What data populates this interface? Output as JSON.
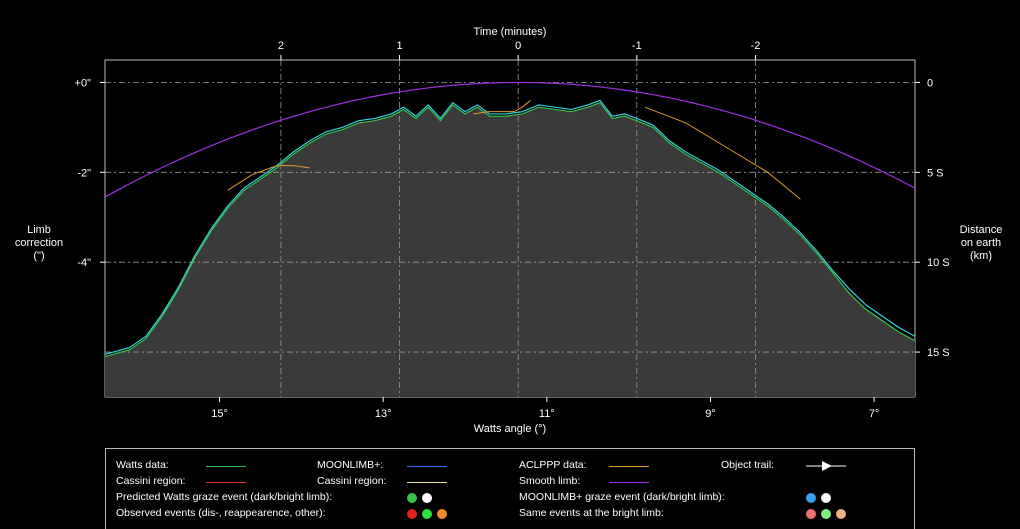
{
  "chart_data": {
    "type": "line",
    "xlabel": "Watts angle (°)",
    "x2label": "Time (minutes)",
    "ylabel": "Limb\ncorrection\n(\")",
    "y2label": "Distance\non earth\n(km)",
    "xlim": [
      16.4,
      6.5
    ],
    "ylim": [
      -7,
      0.5
    ],
    "x_ticks": [
      {
        "v": 15,
        "label": "15°"
      },
      {
        "v": 13,
        "label": "13°"
      },
      {
        "v": 11,
        "label": "11°"
      },
      {
        "v": 9,
        "label": "9°"
      },
      {
        "v": 7,
        "label": "7°"
      }
    ],
    "x2_ticks": [
      {
        "v": 2,
        "label": "2"
      },
      {
        "v": 1,
        "label": "1"
      },
      {
        "v": 0,
        "label": "0"
      },
      {
        "v": -1,
        "label": "-1"
      },
      {
        "v": -2,
        "label": "-2"
      }
    ],
    "y_ticks": [
      {
        "v": 0,
        "label": "+0\""
      },
      {
        "v": -2,
        "label": "-2\""
      },
      {
        "v": -4,
        "label": "-4\""
      }
    ],
    "y2_ticks": [
      {
        "v": 0,
        "label": "0"
      },
      {
        "v": -2,
        "label": "5 S"
      },
      {
        "v": -4,
        "label": "10 S"
      },
      {
        "v": -6,
        "label": "15 S"
      }
    ],
    "grid": true,
    "series": [
      {
        "name": "Watts data:",
        "color": "#34c24a",
        "x": [
          16.4,
          16.1,
          15.9,
          15.7,
          15.5,
          15.3,
          15.1,
          14.9,
          14.7,
          14.5,
          14.3,
          14.1,
          13.9,
          13.7,
          13.5,
          13.3,
          13.1,
          12.9,
          12.75,
          12.6,
          12.45,
          12.3,
          12.15,
          12.0,
          11.85,
          11.7,
          11.5,
          11.3,
          11.1,
          10.9,
          10.7,
          10.5,
          10.35,
          10.2,
          10.05,
          9.9,
          9.7,
          9.5,
          9.3,
          9.1,
          8.9,
          8.7,
          8.5,
          8.3,
          8.1,
          7.9,
          7.7,
          7.5,
          7.3,
          7.1,
          6.9,
          6.7,
          6.5
        ],
        "y": [
          -6.1,
          -5.95,
          -5.7,
          -5.2,
          -4.6,
          -3.9,
          -3.3,
          -2.8,
          -2.4,
          -2.15,
          -1.9,
          -1.6,
          -1.35,
          -1.15,
          -1.05,
          -0.9,
          -0.85,
          -0.75,
          -0.6,
          -0.8,
          -0.55,
          -0.85,
          -0.5,
          -0.7,
          -0.55,
          -0.75,
          -0.75,
          -0.7,
          -0.55,
          -0.6,
          -0.65,
          -0.55,
          -0.45,
          -0.8,
          -0.75,
          -0.85,
          -1.0,
          -1.35,
          -1.6,
          -1.8,
          -2.0,
          -2.25,
          -2.5,
          -2.75,
          -3.05,
          -3.4,
          -3.8,
          -4.25,
          -4.7,
          -5.05,
          -5.3,
          -5.55,
          -5.75
        ]
      },
      {
        "name": "MOONLIMB+:",
        "color": "#3b6df0",
        "x": [
          16.4,
          16.1,
          15.9,
          15.7,
          15.5,
          15.3,
          15.1,
          14.9,
          14.7,
          14.5,
          14.3,
          14.1,
          13.9,
          13.7,
          13.5,
          13.3,
          13.1,
          12.9,
          12.75,
          12.6,
          12.45,
          12.3,
          12.15,
          12.0,
          11.85,
          11.7,
          11.5,
          11.3,
          11.1,
          10.9,
          10.7,
          10.5,
          10.35,
          10.2,
          10.05,
          9.9,
          9.7,
          9.5,
          9.3,
          9.1,
          8.9,
          8.7,
          8.5,
          8.3,
          8.1,
          7.9,
          7.7,
          7.5,
          7.3,
          7.1,
          6.9,
          6.7,
          6.5
        ],
        "y": [
          -6.05,
          -5.9,
          -5.65,
          -5.15,
          -4.55,
          -3.85,
          -3.25,
          -2.75,
          -2.35,
          -2.1,
          -1.85,
          -1.55,
          -1.3,
          -1.1,
          -1.0,
          -0.85,
          -0.8,
          -0.7,
          -0.55,
          -0.75,
          -0.5,
          -0.8,
          -0.45,
          -0.65,
          -0.5,
          -0.7,
          -0.7,
          -0.65,
          -0.5,
          -0.55,
          -0.6,
          -0.5,
          -0.4,
          -0.75,
          -0.7,
          -0.8,
          -0.95,
          -1.3,
          -1.55,
          -1.75,
          -1.95,
          -2.2,
          -2.45,
          -2.7,
          -3.0,
          -3.35,
          -3.75,
          -4.2,
          -4.6,
          -4.95,
          -5.2,
          -5.45,
          -5.65
        ]
      },
      {
        "name": "Cassini region:",
        "color": "#e03030",
        "x": [],
        "y": []
      },
      {
        "name": "Cassini region:",
        "color": "#f0e0a0",
        "x": [],
        "y": []
      },
      {
        "name": "ACLPPP data:",
        "color": "#e09a2a",
        "x": [
          14.9,
          14.6,
          14.3,
          14.1,
          13.9
        ],
        "y": [
          -2.4,
          -2.05,
          -1.85,
          -1.85,
          -1.9
        ],
        "x_b": [
          11.9,
          11.7,
          11.4,
          11.3,
          11.2
        ],
        "y_b": [
          -0.7,
          -0.65,
          -0.65,
          -0.55,
          -0.4
        ],
        "x_c": [
          9.8,
          9.3,
          8.8,
          8.3,
          7.9
        ],
        "y_c": [
          -0.55,
          -0.9,
          -1.45,
          -2.0,
          -2.6
        ]
      },
      {
        "name": "Smooth limb:",
        "color": "#a030e0"
      }
    ],
    "smooth_limb": {
      "center_x": 11.35,
      "peak_y": 0,
      "curvature": 0.1
    }
  },
  "legend": {
    "watts": "Watts data:",
    "moonlimb": "MOONLIMB+:",
    "aclppp": "ACLPPP data:",
    "trail": "Object trail:",
    "cassini1": "Cassini region:",
    "cassini2": "Cassini region:",
    "smooth": "Smooth limb:",
    "pred_watts": "Predicted Watts graze event (dark/bright limb):",
    "moonlimb_graze": "MOONLIMB+ graze event (dark/bright limb):",
    "observed": "Observed events (dis-, reappearence, other):",
    "same_bright": "Same events at the bright limb:",
    "colors": {
      "watts": "#34c24a",
      "moonlimb": "#3b6df0",
      "cassini1": "#e03030",
      "cassini2": "#f0e0a0",
      "aclppp": "#e09a2a",
      "smooth": "#a030e0"
    }
  }
}
